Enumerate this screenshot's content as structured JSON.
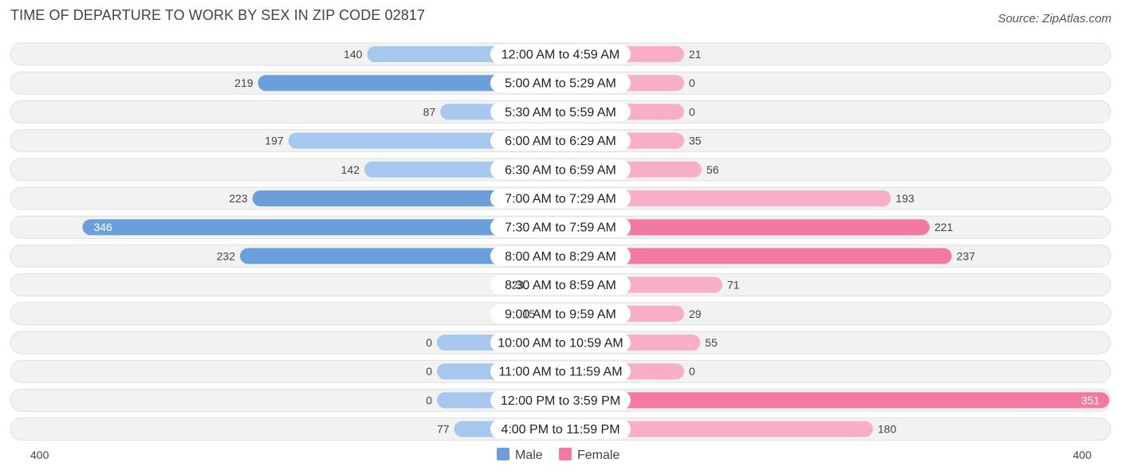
{
  "title": "TIME OF DEPARTURE TO WORK BY SEX IN ZIP CODE 02817",
  "source": "Source: ZipAtlas.com",
  "colors": {
    "male_strong": "#6a9fdc",
    "male_light": "#a6c8ee",
    "female_strong": "#f27aa0",
    "female_light": "#f7aec6",
    "row_bg": "#f2f2f2",
    "row_border": "#e0e0e0"
  },
  "chart_data": {
    "type": "bar",
    "orientation": "horizontal-diverging",
    "title": "TIME OF DEPARTURE TO WORK BY SEX IN ZIP CODE 02817",
    "categories": [
      "12:00 AM to 4:59 AM",
      "5:00 AM to 5:29 AM",
      "5:30 AM to 5:59 AM",
      "6:00 AM to 6:29 AM",
      "6:30 AM to 6:59 AM",
      "7:00 AM to 7:29 AM",
      "7:30 AM to 7:59 AM",
      "8:00 AM to 8:29 AM",
      "8:30 AM to 8:59 AM",
      "9:00 AM to 9:59 AM",
      "10:00 AM to 10:59 AM",
      "11:00 AM to 11:59 AM",
      "12:00 PM to 3:59 PM",
      "4:00 PM to 11:59 PM"
    ],
    "series": [
      {
        "name": "Male",
        "values": [
          140,
          219,
          87,
          197,
          142,
          223,
          346,
          232,
          23,
          15,
          0,
          0,
          0,
          77
        ]
      },
      {
        "name": "Female",
        "values": [
          21,
          0,
          0,
          35,
          56,
          193,
          221,
          237,
          71,
          29,
          55,
          0,
          351,
          180
        ]
      }
    ],
    "axis_max": 400,
    "axis_labels": {
      "left": "400",
      "right": "400"
    },
    "legend": [
      "Male",
      "Female"
    ],
    "legend_position": "bottom-center"
  }
}
